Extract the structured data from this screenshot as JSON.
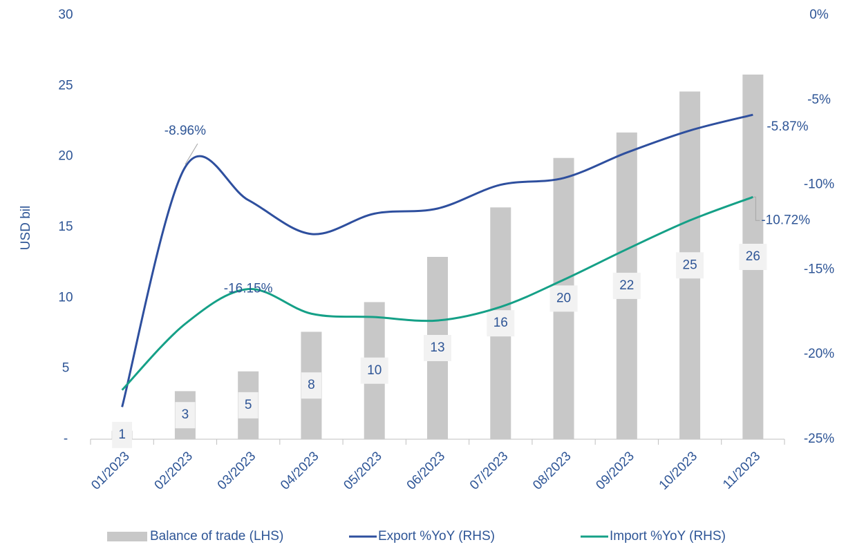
{
  "chart_data": {
    "type": "combo",
    "ylabel": "USD bil",
    "categories": [
      "01/2023",
      "02/2023",
      "03/2023",
      "04/2023",
      "05/2023",
      "06/2023",
      "07/2023",
      "08/2023",
      "09/2023",
      "10/2023",
      "11/2023"
    ],
    "ylim": [
      0,
      30
    ],
    "yticks": [
      {
        "value": 0,
        "label": "-"
      },
      5,
      10,
      15,
      20,
      25,
      30
    ],
    "y2lim": [
      -25,
      0
    ],
    "y2ticks": [
      {
        "value": -25,
        "label": "-25%"
      },
      {
        "value": -20,
        "label": "-20%"
      },
      {
        "value": -15,
        "label": "-15%"
      },
      {
        "value": -10,
        "label": "-10%"
      },
      {
        "value": -5,
        "label": "-5%"
      },
      {
        "value": 0,
        "label": "0%"
      }
    ],
    "legend": "bottom",
    "series": [
      {
        "name": "Balance of trade (LHS)",
        "type": "bar",
        "color": "#c8c8c8",
        "values": [
          0.6,
          3.4,
          4.8,
          7.6,
          9.7,
          12.9,
          16.4,
          19.9,
          21.7,
          24.6,
          25.8
        ],
        "value_labels": [
          "1",
          "3",
          "5",
          "8",
          "10",
          "13",
          "16",
          "20",
          "22",
          "25",
          "26"
        ]
      },
      {
        "name": "Export %YoY (RHS)",
        "type": "line",
        "axis": "y2",
        "color": "#2e4f9e",
        "values": [
          -23.1,
          -8.96,
          -10.9,
          -12.9,
          -11.7,
          -11.4,
          -10.0,
          -9.6,
          -8.1,
          -6.8,
          -5.87
        ],
        "value_labels": [
          null,
          "-8.96%",
          null,
          null,
          null,
          null,
          null,
          null,
          null,
          null,
          "-5.87%"
        ]
      },
      {
        "name": "Import %YoY (RHS)",
        "type": "line",
        "axis": "y2",
        "color": "#15a087",
        "values": [
          -22.1,
          -18.2,
          -16.15,
          -17.6,
          -17.8,
          -18.0,
          -17.2,
          -15.6,
          -13.8,
          -12.1,
          -10.72
        ],
        "value_labels": [
          null,
          null,
          "-16.15%",
          null,
          null,
          null,
          null,
          null,
          null,
          null,
          "-10.72%"
        ]
      }
    ]
  }
}
